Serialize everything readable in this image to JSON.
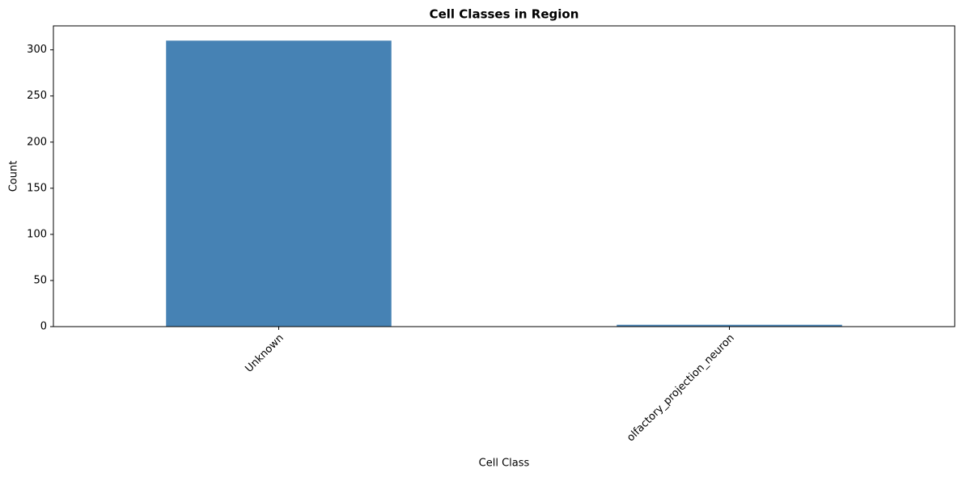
{
  "chart_data": {
    "type": "bar",
    "title": "Cell Classes in Region",
    "x_label": "Cell Class",
    "y_label": "Count",
    "categories": [
      "Unknown",
      "olfactory_projection_neuron"
    ],
    "values": [
      310,
      2
    ],
    "color": "#4682b4",
    "ylim": [
      0,
      326
    ],
    "yticks": [
      0,
      50,
      100,
      150,
      200,
      250,
      300
    ],
    "grid": false
  }
}
